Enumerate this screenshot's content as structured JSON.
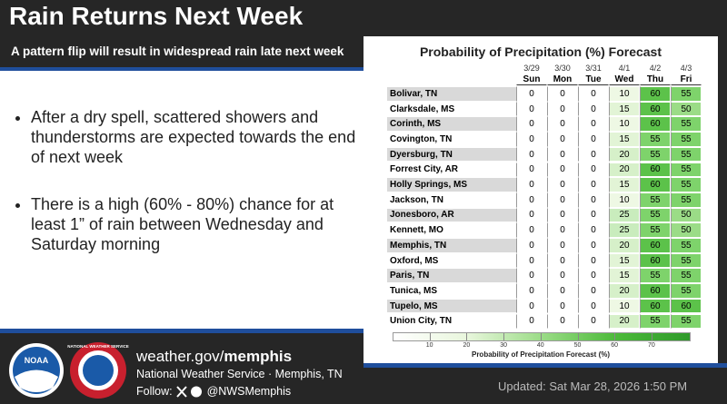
{
  "header": {
    "title": "Rain Returns Next Week",
    "subtitle": "A pattern flip will result in widespread rain late next week"
  },
  "bullets": [
    "After a dry spell, scattered showers and thunderstorms are expected towards the end of next week",
    "There is a high (60% - 80%) chance for at least 1” of rain between Wednesday and Saturday morning"
  ],
  "table": {
    "title": "Probability of Precipitation (%) Forecast",
    "columns": [
      {
        "date": "3/29",
        "day": "Sun"
      },
      {
        "date": "3/30",
        "day": "Mon"
      },
      {
        "date": "3/31",
        "day": "Tue"
      },
      {
        "date": "4/1",
        "day": "Wed"
      },
      {
        "date": "4/2",
        "day": "Thu"
      },
      {
        "date": "4/3",
        "day": "Fri"
      }
    ],
    "rows": [
      {
        "name": "Bolivar, TN",
        "values": [
          0,
          0,
          0,
          10,
          60,
          55
        ]
      },
      {
        "name": "Clarksdale, MS",
        "values": [
          0,
          0,
          0,
          15,
          60,
          50
        ]
      },
      {
        "name": "Corinth, MS",
        "values": [
          0,
          0,
          0,
          10,
          60,
          55
        ]
      },
      {
        "name": "Covington, TN",
        "values": [
          0,
          0,
          0,
          15,
          55,
          55
        ]
      },
      {
        "name": "Dyersburg, TN",
        "values": [
          0,
          0,
          0,
          20,
          55,
          55
        ]
      },
      {
        "name": "Forrest City, AR",
        "values": [
          0,
          0,
          0,
          20,
          60,
          55
        ]
      },
      {
        "name": "Holly Springs, MS",
        "values": [
          0,
          0,
          0,
          15,
          60,
          55
        ]
      },
      {
        "name": "Jackson, TN",
        "values": [
          0,
          0,
          0,
          10,
          55,
          55
        ]
      },
      {
        "name": "Jonesboro, AR",
        "values": [
          0,
          0,
          0,
          25,
          55,
          50
        ]
      },
      {
        "name": "Kennett, MO",
        "values": [
          0,
          0,
          0,
          25,
          55,
          50
        ]
      },
      {
        "name": "Memphis, TN",
        "values": [
          0,
          0,
          0,
          20,
          60,
          55
        ]
      },
      {
        "name": "Oxford, MS",
        "values": [
          0,
          0,
          0,
          15,
          60,
          55
        ]
      },
      {
        "name": "Paris, TN",
        "values": [
          0,
          0,
          0,
          15,
          55,
          55
        ]
      },
      {
        "name": "Tunica, MS",
        "values": [
          0,
          0,
          0,
          20,
          60,
          55
        ]
      },
      {
        "name": "Tupelo, MS",
        "values": [
          0,
          0,
          0,
          10,
          60,
          60
        ]
      },
      {
        "name": "Union City, TN",
        "values": [
          0,
          0,
          0,
          20,
          55,
          55
        ]
      }
    ],
    "scale": {
      "ticks": [
        10,
        20,
        30,
        40,
        50,
        60,
        70
      ],
      "label": "Probability of Precipitation Forecast (%)"
    }
  },
  "logos": {
    "noaa": "NOAA",
    "nws": "NATIONAL WEATHER SERVICE"
  },
  "footer": {
    "site_prefix": "weather.gov/",
    "site_name": "memphis",
    "org": "National Weather Service · Memphis, TN",
    "follow": "Follow:",
    "handle": "@NWSMemphis",
    "updated": "Updated: Sat Mar 28, 2026 1:50 PM"
  }
}
